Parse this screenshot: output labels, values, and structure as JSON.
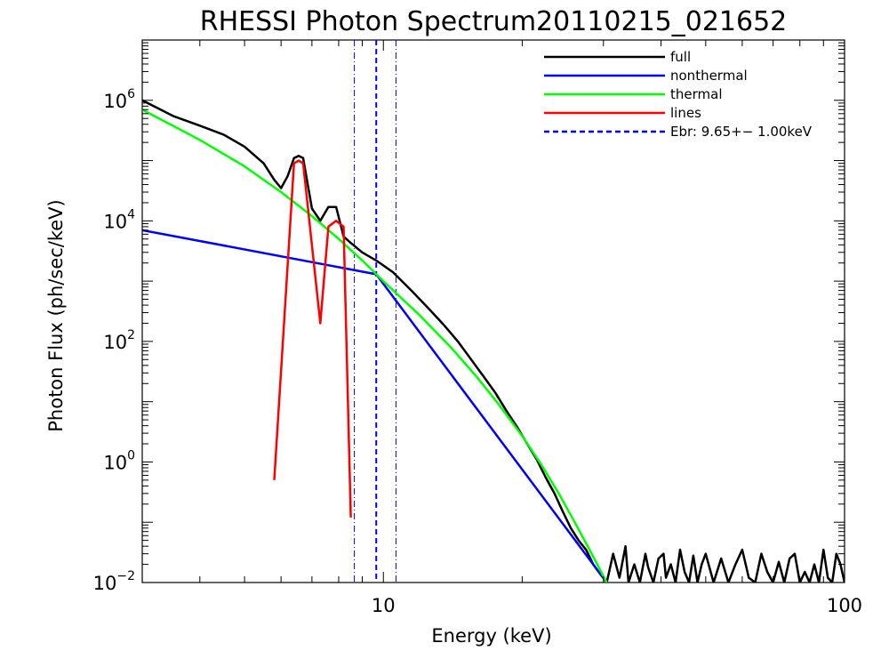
{
  "chart_data": {
    "type": "line",
    "title": "RHESSI Photon Spectrum20110215_021652",
    "xlabel": "Energy (keV)",
    "ylabel": "Photon Flux (ph/sec/keV)",
    "x_scale": "log",
    "y_scale": "log",
    "xlim": [
      3,
      100
    ],
    "ylim": [
      0.01,
      10000000
    ],
    "x_tick_labels": [
      {
        "value": 10,
        "label": "10"
      },
      {
        "value": 100,
        "label": "100"
      }
    ],
    "y_tick_labels": [
      {
        "value": 0.01,
        "base": "10",
        "exp": "−2"
      },
      {
        "value": 1,
        "base": "10",
        "exp": "0"
      },
      {
        "value": 100,
        "base": "10",
        "exp": "2"
      },
      {
        "value": 10000,
        "base": "10",
        "exp": "4"
      },
      {
        "value": 1000000,
        "base": "10",
        "exp": "6"
      }
    ],
    "grid": false,
    "legend_position": "top-right",
    "series": [
      {
        "name": "full",
        "color": "#000000",
        "x": [
          3.0,
          3.5,
          4.0,
          4.5,
          5.0,
          5.5,
          5.8,
          6.0,
          6.2,
          6.4,
          6.55,
          6.7,
          7.0,
          7.3,
          7.6,
          7.9,
          8.2,
          8.5,
          9.0,
          9.65,
          10.5,
          11.5,
          12.5,
          13.5,
          14.5,
          15.5,
          16.5,
          17.5,
          18.5,
          19.5,
          20.5,
          21.5,
          22.5,
          23.5,
          24.5,
          25.5,
          26.5,
          27.5,
          28.5,
          29.5,
          30.5
        ],
        "y": [
          1000000,
          550000,
          380000,
          270000,
          170000,
          90000,
          48000,
          35000,
          55000,
          110000,
          120000,
          110000,
          16000,
          10000,
          17000,
          17000,
          5500,
          4300,
          3000,
          2200,
          1400,
          700,
          360,
          190,
          100,
          50,
          26,
          14,
          7,
          3.8,
          2.0,
          1.1,
          0.55,
          0.3,
          0.15,
          0.08,
          0.05,
          0.035,
          0.02,
          0.014,
          0.01
        ],
        "noise_tail": {
          "x": [
            30.5,
            31.5,
            32.5,
            33.5,
            34.0,
            35.0,
            36.0,
            37.0,
            37.5,
            38.5,
            39.5,
            40.5,
            41.0,
            42.0,
            43.0,
            44.0,
            45.0,
            46.0,
            47.0,
            48.0,
            49.0,
            50.0,
            52.0,
            54.0,
            56.0,
            58.0,
            60.0,
            62.0,
            64.0,
            66.0,
            68.0,
            70.0,
            72.0,
            74.0,
            76.0,
            78.0,
            80.0,
            82.0,
            84.0,
            86.0,
            88.0,
            90.0,
            92.0,
            94.0,
            96.0,
            98.0,
            100.0
          ],
          "y": [
            0.01,
            0.03,
            0.012,
            0.04,
            0.01,
            0.02,
            0.01,
            0.03,
            0.018,
            0.01,
            0.025,
            0.03,
            0.012,
            0.02,
            0.01,
            0.035,
            0.015,
            0.01,
            0.028,
            0.01,
            0.02,
            0.03,
            0.01,
            0.025,
            0.01,
            0.02,
            0.035,
            0.012,
            0.01,
            0.03,
            0.015,
            0.01,
            0.022,
            0.01,
            0.025,
            0.03,
            0.01,
            0.015,
            0.01,
            0.02,
            0.01,
            0.035,
            0.012,
            0.01,
            0.03,
            0.02,
            0.01
          ]
        }
      },
      {
        "name": "nonthermal",
        "color": "#0000ff",
        "x": [
          3.0,
          9.65,
          30.5
        ],
        "y": [
          7000,
          1300,
          0.01
        ]
      },
      {
        "name": "thermal",
        "color": "#00ff00",
        "x": [
          3.0,
          4.0,
          5.0,
          6.0,
          7.0,
          8.0,
          9.0,
          10.0,
          12.0,
          14.0,
          16.0,
          18.0,
          20.0,
          22.0,
          24.0,
          26.0,
          28.0,
          30.5
        ],
        "y": [
          700000,
          220000,
          80000,
          30000,
          12000,
          5000,
          2200,
          1000,
          270,
          80,
          25,
          8,
          2.7,
          0.9,
          0.3,
          0.1,
          0.035,
          0.01
        ]
      },
      {
        "name": "lines",
        "color": "#ff0000",
        "x": [
          5.8,
          6.4,
          6.55,
          6.7,
          7.3,
          7.6,
          7.9,
          8.2,
          8.5
        ],
        "y": [
          0.5,
          90000,
          100000,
          90000,
          200,
          8000,
          10000,
          8000,
          0.12
        ]
      }
    ],
    "vertical_lines": [
      {
        "name": "Ebr",
        "x": 9.65,
        "style": "dashed",
        "color": "#0000ff"
      },
      {
        "name": "Ebr-lower",
        "x": 8.65,
        "style": "dash-dot",
        "color": "#0000ff"
      },
      {
        "name": "Ebr-upper",
        "x": 10.65,
        "style": "dash-dot",
        "color": "#0000ff"
      }
    ],
    "legend": [
      {
        "label": "full",
        "color": "#000000",
        "style": "solid"
      },
      {
        "label": "nonthermal",
        "color": "#0000ff",
        "style": "solid"
      },
      {
        "label": "thermal",
        "color": "#00ff00",
        "style": "solid"
      },
      {
        "label": "lines",
        "color": "#ff0000",
        "style": "solid"
      },
      {
        "label": "Ebr:   9.65+−  1.00keV",
        "color": "#0000ff",
        "style": "dashed"
      }
    ]
  }
}
